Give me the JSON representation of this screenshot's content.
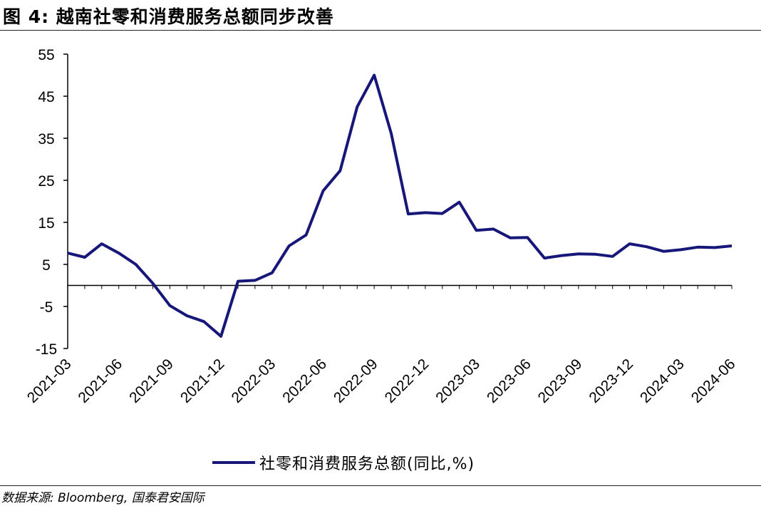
{
  "figure": {
    "title": "图 4:  越南社零和消费服务总额同步改善",
    "source": "数据来源: Bloomberg, 国泰君安国际"
  },
  "chart_data": {
    "type": "line",
    "title": "",
    "xlabel": "",
    "ylabel": "",
    "ylim": [
      -15,
      55
    ],
    "yticks": [
      55,
      45,
      35,
      25,
      15,
      5,
      -5,
      -15
    ],
    "grid": false,
    "legend_position": "bottom",
    "x": [
      "2021-03",
      "2021-04",
      "2021-05",
      "2021-06",
      "2021-07",
      "2021-08",
      "2021-09",
      "2021-10",
      "2021-11",
      "2021-12",
      "2022-01",
      "2022-02",
      "2022-03",
      "2022-04",
      "2022-05",
      "2022-06",
      "2022-07",
      "2022-08",
      "2022-09",
      "2022-10",
      "2022-11",
      "2022-12",
      "2023-01",
      "2023-02",
      "2023-03",
      "2023-04",
      "2023-05",
      "2023-06",
      "2023-07",
      "2023-08",
      "2023-09",
      "2023-10",
      "2023-11",
      "2023-12",
      "2024-01",
      "2024-02",
      "2024-03",
      "2024-04",
      "2024-05",
      "2024-06"
    ],
    "xticks": [
      "2021-03",
      "2021-06",
      "2021-09",
      "2021-12",
      "2022-03",
      "2022-06",
      "2022-09",
      "2022-12",
      "2023-03",
      "2023-06",
      "2023-09",
      "2023-12",
      "2024-03",
      "2024-06"
    ],
    "series": [
      {
        "name": "社零和消费服务总额(同比,%)",
        "color": "#17177a",
        "values": [
          7.7,
          6.7,
          9.9,
          7.7,
          5.0,
          0.5,
          -4.8,
          -7.2,
          -8.6,
          -12.1,
          1.0,
          1.2,
          3.0,
          9.4,
          12.0,
          22.5,
          27.3,
          42.5,
          50.0,
          36.1,
          17.0,
          17.3,
          17.1,
          19.8,
          13.1,
          13.4,
          11.3,
          11.4,
          6.5,
          7.1,
          7.5,
          7.4,
          6.9,
          9.9,
          9.2,
          8.1,
          8.5,
          9.1,
          9.0,
          9.4
        ]
      }
    ]
  }
}
